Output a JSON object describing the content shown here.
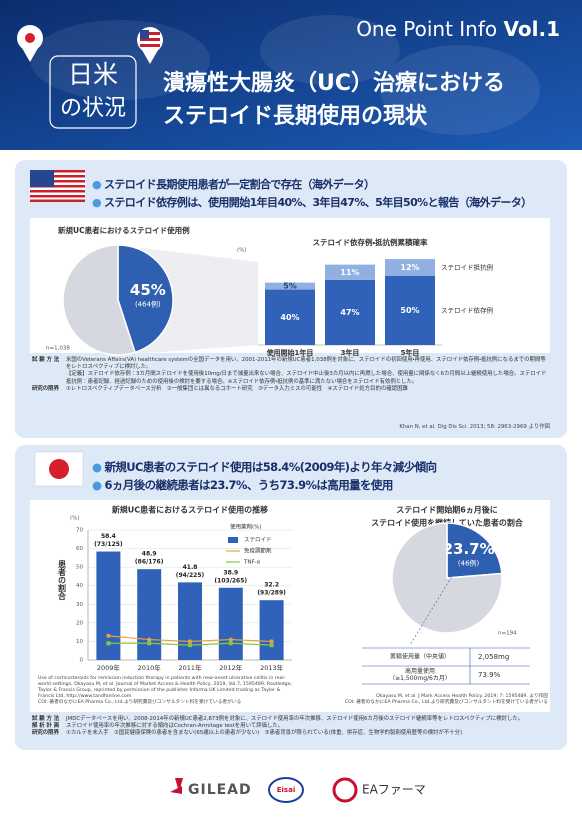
{
  "header": {
    "series": "One Point Info",
    "volume": "Vol.1",
    "badge": [
      "日米",
      "の状況"
    ],
    "title": [
      "潰瘍性大腸炎（UC）治療における",
      "ステロイド長期使用の現状"
    ]
  },
  "us": {
    "bullets": [
      "ステロイド長期使用患者が一定割合で存在（海外データ）",
      "ステロイド依存例は、使用開始1年目40%、3年目47%、5年目50%と報告（海外データ）"
    ],
    "notes": [
      {
        "label": "試 験 方 法",
        "text": "米国のVeterans Affairs(VA) healthcare systemの全国データを用い、2001-2011年の新規UC患者1,038例を対象に、ステロイドの初回使用・再使用、ステロイド依存例・抵抗例になるまでの期間等をレトロスペクティブに検討した。"
      },
      {
        "label": "",
        "text": "【定義】ステロイド依存例：3カ月間ステロイドを使用後10mg/日まで減量出来ない場合、ステロイド中止後3カ月以内に再燃した場合、使用量に関係なく6カ月間以上継続使用した場合。ステロイド抵抗例：患者記録、経過記録のための使用後の検討を要する場合。※ステロイド依存例・抵抗例の基準に満たない場合をステロイド有効例とした。"
      },
      {
        "label": "研究の限界",
        "text": "①レトロスペクティブデータベース分析　②一般集団とは異なるコホート研究　③データ入力ミスの可能性　④ステロイド処方目的の確認困難"
      }
    ],
    "citation": "Khan N, et al. Dig Dis Sci. 2013; 58: 2963-2969 より作図"
  },
  "jp": {
    "bullets": [
      "新規UC患者のステロイド使用は58.4%(2009年)より年々減少傾向",
      "6ヵ月後の継続患者は23.7%、うち73.9%は高用量を使用"
    ],
    "credit": "Use of corticosteroids for remission induction therapy in patients with new-onset ulcerative colitis in real-world settings, Okayasu M, et al. Journal of Market Access & Health Policy, 2019, Vol.7, 1595489. Routledge, Taylor & Francis Group, reprinted by permission of the publisher Informa UK Limited trading as Taylor & Francis Ltd, http://www.tandfonline.com",
    "coi": "COI: 著者のなかにEA Pharma Co., Ltd.より研究費及びコンサルタント料を受けている者がいる",
    "citation": "Okayasu M, et al. J Mark Access Health Policy. 2019; 7: 1595489. より作図",
    "notes": [
      {
        "label": "試 験 方 法",
        "text": "JMDCデータベースを用い、2008-2014年の新規UC患者2,873例を対象に、ステロイド使用率の年次推移、ステロイド使用6カ月後のステロイド継続率等をレトロスペクティブに検討した。"
      },
      {
        "label": "解 析 計 画",
        "text": "ステロイド使用率の年次推移に対する傾向はCochran-Armitage testを用いて評価した。"
      },
      {
        "label": "研究の限界",
        "text": "①カルテを未入手　②国民健康保険の患者を含まない(65歳以上の患者が少ない)　③患者背景が限られている(体重、併存症、生物学的製剤使用歴等の検討が不十分)"
      }
    ]
  },
  "footer": {
    "logos": [
      "GILEAD",
      "Eisai",
      "EAファーマ"
    ]
  },
  "chart_data": [
    {
      "type": "pie",
      "title": "新規UC患者におけるステロイド使用例",
      "values": [
        45,
        55
      ],
      "value_labels": [
        "45%",
        null
      ],
      "counts": [
        "(464例)",
        null
      ],
      "colors": [
        "#2f5fb0",
        "#d5d9df"
      ],
      "note": "n=1,038"
    },
    {
      "type": "stacked-bar",
      "title": "ステロイド依存例・抵抗例累積確率",
      "y_unit": "(%)",
      "categories": [
        "使用開始1年目",
        "3年目",
        "5年目"
      ],
      "ylim": [
        0,
        70
      ],
      "series": [
        {
          "name": "ステロイド依存例",
          "color": "#2f62b8",
          "values": [
            40,
            47,
            50
          ],
          "value_labels": [
            "40%",
            "47%",
            "50%"
          ]
        },
        {
          "name": "ステロイド抵抗例",
          "color": "#8fb0e0",
          "values": [
            5,
            11,
            12
          ],
          "value_labels": [
            "5%",
            "11%",
            "12%"
          ]
        }
      ]
    },
    {
      "type": "bar-line",
      "title": "新規UC患者におけるステロイド使用の推移",
      "ylabel": "患者の割合",
      "y_unit": "(%)",
      "legend_title": "使用薬剤(%)",
      "categories": [
        "2009年",
        "2010年",
        "2011年",
        "2012年",
        "2013年"
      ],
      "ylim": [
        0,
        70
      ],
      "yticks": [
        0,
        10,
        20,
        30,
        40,
        50,
        60,
        70
      ],
      "grid": true,
      "series": [
        {
          "name": "ステロイド",
          "type": "bar",
          "color": "#2f62b8",
          "values": [
            58.4,
            48.9,
            41.8,
            38.9,
            32.2
          ],
          "value_labels": [
            "58.4",
            "48.9",
            "41.8",
            "38.9",
            "32.2"
          ],
          "fractions": [
            "(73/125)",
            "(86/176)",
            "(94/225)",
            "(103/265)",
            "(93/289)"
          ]
        },
        {
          "name": "免疫調節剤",
          "type": "line",
          "color": "#f0a040",
          "values": [
            13,
            11,
            10,
            11,
            10
          ]
        },
        {
          "name": "TNF-α",
          "type": "line",
          "color": "#8cc63f",
          "values": [
            9,
            9,
            8,
            9,
            8
          ]
        }
      ]
    },
    {
      "type": "pie",
      "title": [
        "ステロイド開始期6ヵ月後に",
        "ステロイド使用を継続していた患者の割合"
      ],
      "values": [
        23.7,
        76.3
      ],
      "value_labels": [
        "23.7%",
        null
      ],
      "counts": [
        "(46例)",
        null
      ],
      "colors": [
        "#2f5fb0",
        "#d5d9df"
      ],
      "note": "n=194",
      "table": [
        {
          "label": [
            "累積使用量（中央値）"
          ],
          "value": "2,058mg"
        },
        {
          "label": [
            "高用量使用",
            "（≥1,500mg/6カ月）"
          ],
          "value": "73.9%"
        }
      ]
    }
  ]
}
